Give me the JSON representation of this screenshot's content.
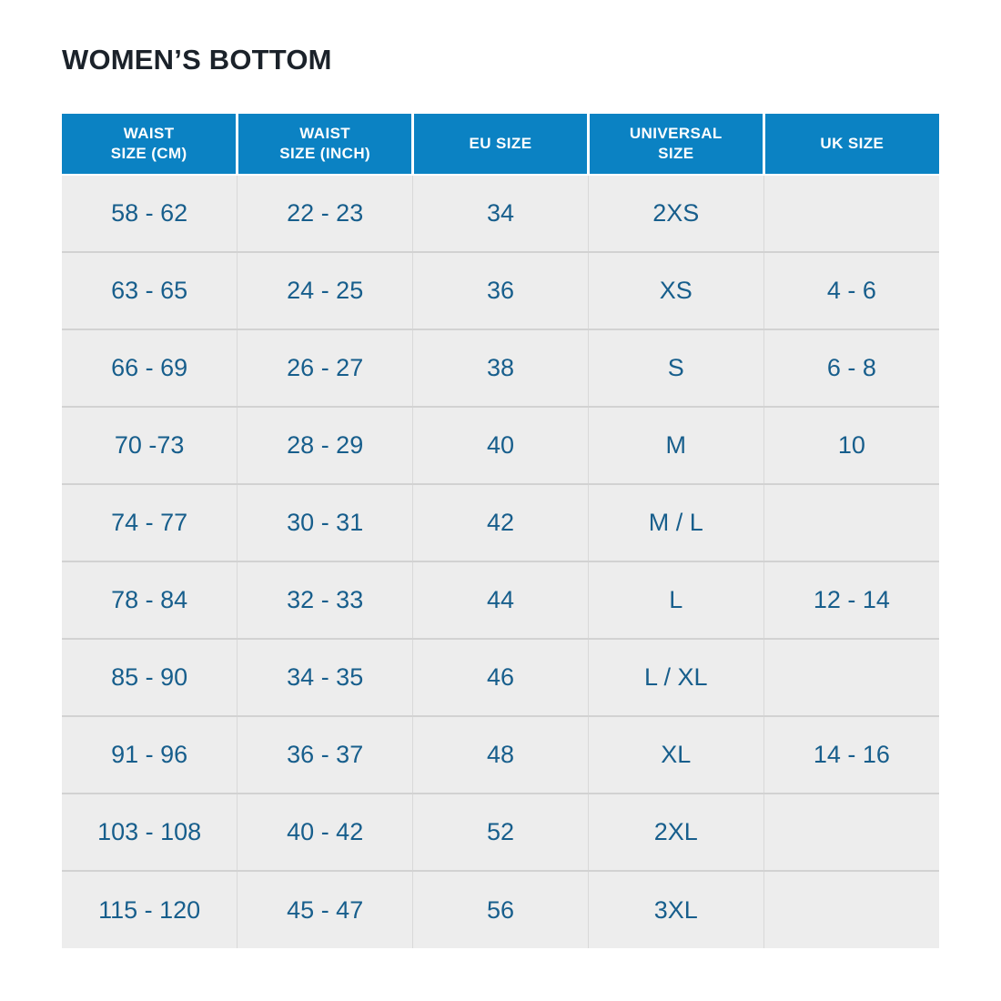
{
  "page": {
    "title": "WOMEN’S BOTTOM"
  },
  "colors": {
    "header_bg": "#0b82c3",
    "header_text": "#ffffff",
    "cell_text": "#175e8c",
    "row_bg": "#ededed",
    "title": "#1b222a",
    "row_border": "#d2d2d2",
    "col_border": "#d9d9d9",
    "page_bg": "#ffffff"
  },
  "table": {
    "columns": [
      {
        "id": "waist-size-cm",
        "lines": [
          "WAIST",
          "SIZE (CM)"
        ]
      },
      {
        "id": "waist-size-inch",
        "lines": [
          "WAIST",
          "SIZE (INCH)"
        ]
      },
      {
        "id": "eu-size",
        "lines": [
          "EU SIZE"
        ]
      },
      {
        "id": "universal-size",
        "lines": [
          "UNIVERSAL",
          "SIZE"
        ]
      },
      {
        "id": "uk-size",
        "lines": [
          "UK SIZE"
        ]
      }
    ],
    "rows": [
      [
        "58 - 62",
        "22 - 23",
        "34",
        "2XS",
        ""
      ],
      [
        "63 - 65",
        "24 - 25",
        "36",
        "XS",
        "4 - 6"
      ],
      [
        "66 - 69",
        "26 - 27",
        "38",
        "S",
        "6 - 8"
      ],
      [
        "70 -73",
        "28 - 29",
        "40",
        "M",
        "10"
      ],
      [
        "74 - 77",
        "30 - 31",
        "42",
        "M / L",
        ""
      ],
      [
        "78 - 84",
        "32 - 33",
        "44",
        "L",
        "12 - 14"
      ],
      [
        "85 - 90",
        "34 - 35",
        "46",
        "L / XL",
        ""
      ],
      [
        "91 - 96",
        "36 - 37",
        "48",
        "XL",
        "14 - 16"
      ],
      [
        "103 - 108",
        "40 - 42",
        "52",
        "2XL",
        ""
      ],
      [
        "115 - 120",
        "45 - 47",
        "56",
        "3XL",
        ""
      ]
    ]
  }
}
